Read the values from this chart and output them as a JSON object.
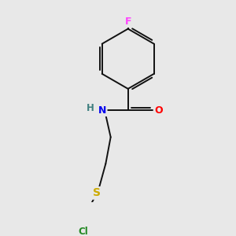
{
  "background_color": "#e8e8e8",
  "atom_colors": {
    "F": "#ff44ff",
    "O": "#ff0000",
    "N": "#0000ee",
    "S": "#ccaa00",
    "Cl": "#228822",
    "H": "#408080"
  },
  "bond_color": "#111111",
  "bond_width": 1.4,
  "figsize": [
    3.0,
    3.0
  ],
  "dpi": 100
}
